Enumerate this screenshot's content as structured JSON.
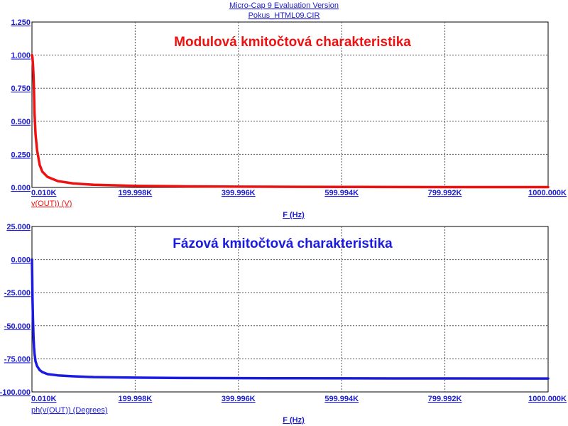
{
  "header": {
    "app_title": "Micro-Cap 9 Evaluation Version",
    "file_name": "Pokus_HTML09.CIR"
  },
  "chart_data": [
    {
      "type": "line",
      "annotation": "Modulová kmitočtová charakteristika",
      "annotation_color": "#ee1111",
      "xlabel": "F (Hz)",
      "ylabel": "",
      "series": [
        {
          "name": "v(OUT)) (V)",
          "color": "#ee1111",
          "x": [
            0.01,
            0.5,
            1,
            2,
            3,
            4,
            5,
            7,
            10,
            15,
            20,
            30,
            50,
            80,
            120,
            200,
            300,
            400,
            500,
            600,
            700,
            800,
            900,
            1000
          ],
          "y": [
            1.0,
            0.995,
            0.98,
            0.93,
            0.85,
            0.73,
            0.56,
            0.4,
            0.28,
            0.17,
            0.12,
            0.08,
            0.048,
            0.03,
            0.02,
            0.012,
            0.008,
            0.006,
            0.005,
            0.004,
            0.0035,
            0.003,
            0.0027,
            0.0024
          ]
        }
      ],
      "x_ticks": [
        "0.010K",
        "199.998K",
        "399.996K",
        "599.994K",
        "799.992K",
        "1000.000K"
      ],
      "x_tick_values": [
        0.01,
        199.998,
        399.996,
        599.994,
        799.992,
        1000
      ],
      "y_ticks": [
        "1.250",
        "1.000",
        "0.750",
        "0.500",
        "0.250",
        "0.000"
      ],
      "y_tick_values": [
        1.25,
        1.0,
        0.75,
        0.5,
        0.25,
        0.0
      ],
      "xlim": [
        0.01,
        1000
      ],
      "ylim": [
        0,
        1.25
      ],
      "grid": true,
      "legend": "bottom-left"
    },
    {
      "type": "line",
      "annotation": "Fázová kmitočtová charakteristika",
      "annotation_color": "#1a1ae0",
      "xlabel": "F (Hz)",
      "ylabel": "",
      "series": [
        {
          "name": "ph(v(OUT)) (Degrees)",
          "color": "#1a1ae0",
          "x": [
            0.01,
            0.5,
            1,
            2,
            3,
            4,
            5,
            7,
            10,
            15,
            20,
            30,
            50,
            80,
            120,
            200,
            300,
            500,
            700,
            1000
          ],
          "y": [
            0,
            -12,
            -28,
            -45,
            -58,
            -66,
            -71,
            -77,
            -80.5,
            -83.5,
            -85,
            -86.5,
            -87.5,
            -88.2,
            -88.8,
            -89.2,
            -89.5,
            -89.7,
            -89.8,
            -89.9
          ]
        }
      ],
      "x_ticks": [
        "0.010K",
        "199.998K",
        "399.996K",
        "599.994K",
        "799.992K",
        "1000.000K"
      ],
      "x_tick_values": [
        0.01,
        199.998,
        399.996,
        599.994,
        799.992,
        1000
      ],
      "y_ticks": [
        "25.000",
        "0.000",
        "-25.000",
        "-50.000",
        "-75.000",
        "-100.000"
      ],
      "y_tick_values": [
        25,
        0,
        -25,
        -50,
        -75,
        -100
      ],
      "xlim": [
        0.01,
        1000
      ],
      "ylim": [
        -100,
        25
      ],
      "grid": true,
      "legend": "bottom-left"
    }
  ]
}
